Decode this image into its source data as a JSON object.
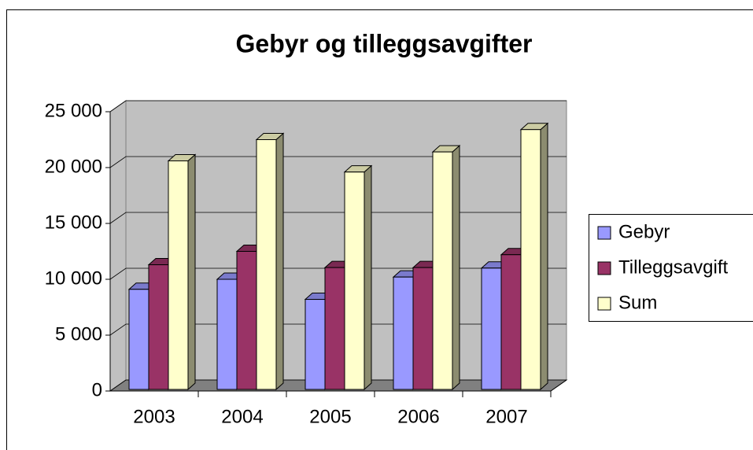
{
  "chart_data": {
    "type": "bar3d",
    "title": "Gebyr og tilleggsavgifter",
    "categories": [
      "2003",
      "2004",
      "2005",
      "2006",
      "2007"
    ],
    "series": [
      {
        "name": "Gebyr",
        "color": "#9999ff",
        "values": [
          9100,
          10000,
          8200,
          10200,
          11000
        ]
      },
      {
        "name": "Tilleggsavgift",
        "color": "#993366",
        "values": [
          11300,
          12500,
          11050,
          11050,
          12200
        ]
      },
      {
        "name": "Sum",
        "color": "#ffffcc",
        "values": [
          20600,
          22500,
          19600,
          21400,
          23400
        ]
      }
    ],
    "ylim": [
      0,
      25000
    ],
    "yticks": [
      0,
      {
        "value": 5000,
        "label": "5 000"
      },
      {
        "value": 10000,
        "label": "10 000"
      },
      {
        "value": 15000,
        "label": "15 000"
      },
      {
        "value": 20000,
        "label": "20 000"
      },
      {
        "value": 25000,
        "label": "25 000"
      }
    ],
    "grid": true,
    "legend": "right"
  }
}
